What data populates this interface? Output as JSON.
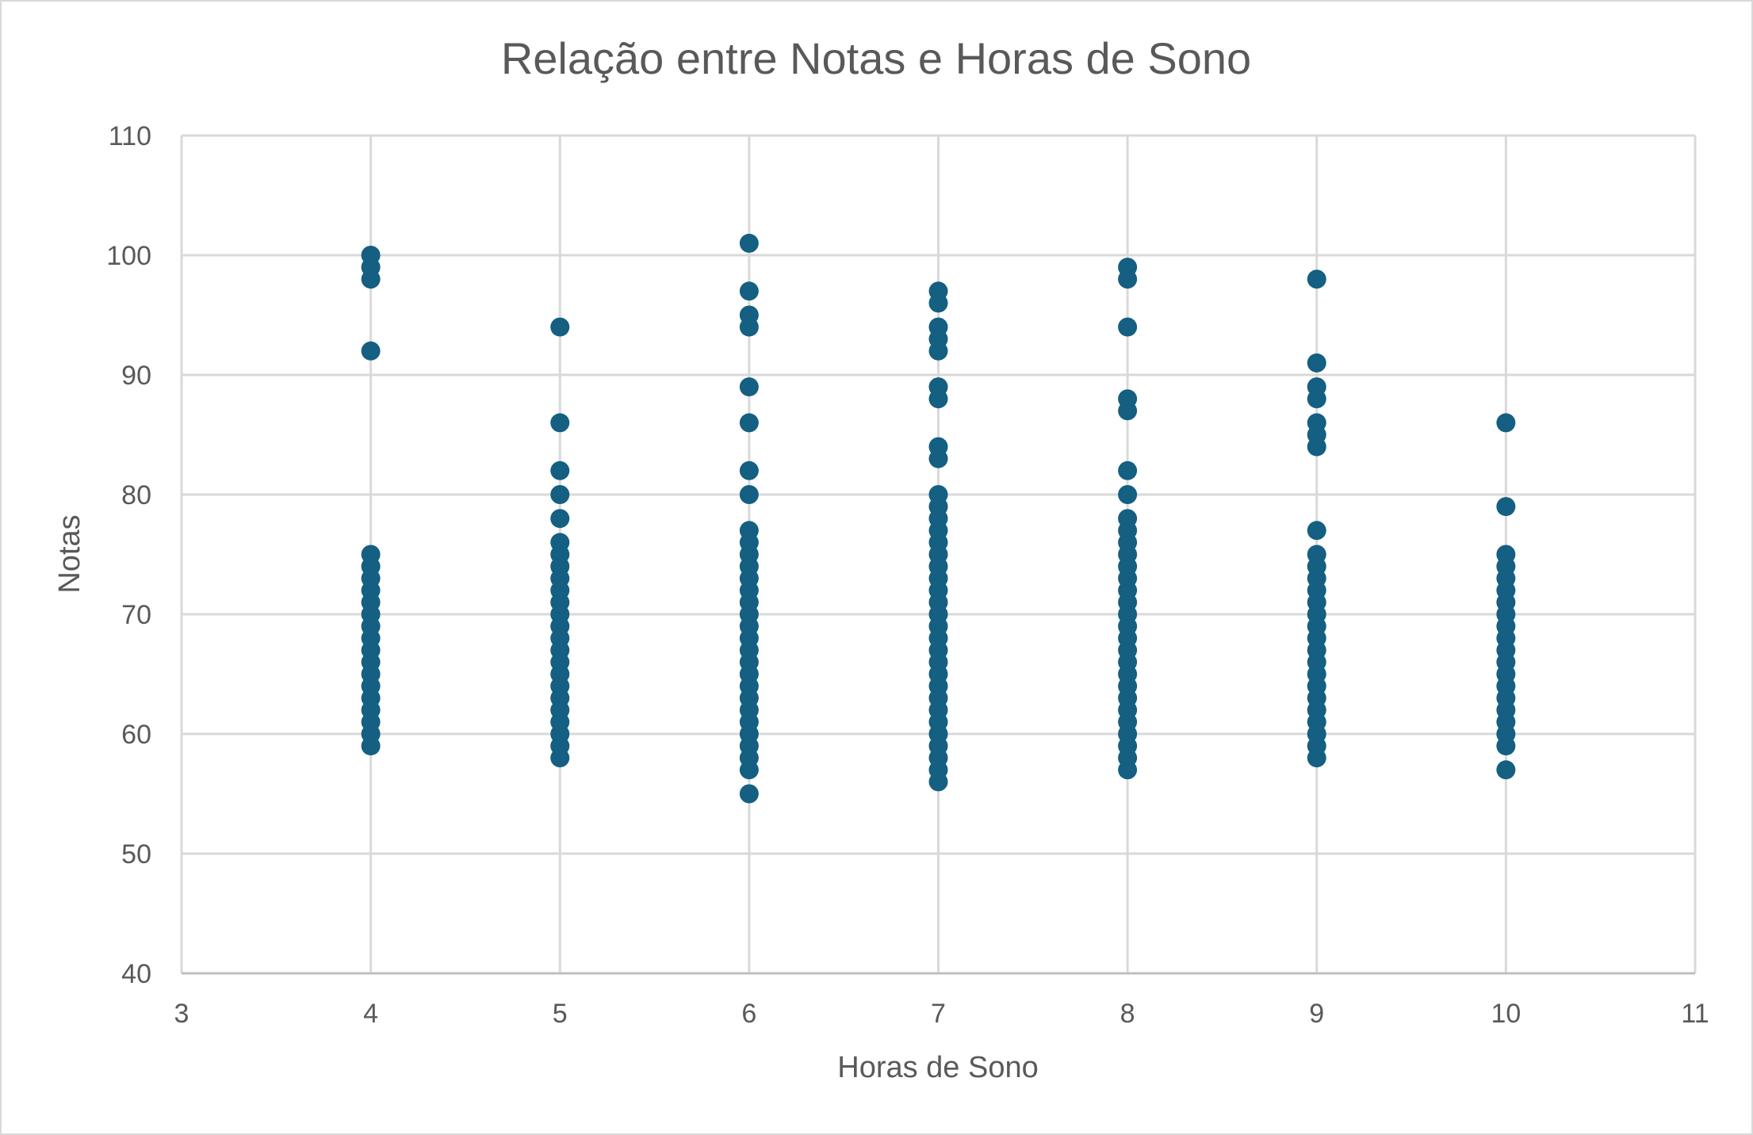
{
  "chart_data": {
    "type": "scatter",
    "title": "Relação entre Notas e Horas de Sono",
    "xlabel": "Horas de Sono",
    "ylabel": "Notas",
    "xlim": [
      3,
      11
    ],
    "ylim": [
      40,
      110
    ],
    "xticks": [
      3,
      4,
      5,
      6,
      7,
      8,
      9,
      10,
      11
    ],
    "yticks": [
      40,
      50,
      60,
      70,
      80,
      90,
      100,
      110
    ],
    "grid": true,
    "legend": "none",
    "marker_color": "#145f82",
    "series": [
      {
        "points": [
          [
            4,
            100
          ],
          [
            4,
            99
          ],
          [
            4,
            98
          ],
          [
            4,
            92
          ],
          [
            4,
            75
          ],
          [
            4,
            74
          ],
          [
            4,
            73
          ],
          [
            4,
            72
          ],
          [
            4,
            71
          ],
          [
            4,
            70
          ],
          [
            4,
            69
          ],
          [
            4,
            68
          ],
          [
            4,
            67
          ],
          [
            4,
            66
          ],
          [
            4,
            65
          ],
          [
            4,
            64
          ],
          [
            4,
            63
          ],
          [
            4,
            62
          ],
          [
            4,
            61
          ],
          [
            4,
            60
          ],
          [
            4,
            59
          ],
          [
            5,
            94
          ],
          [
            5,
            86
          ],
          [
            5,
            82
          ],
          [
            5,
            80
          ],
          [
            5,
            78
          ],
          [
            5,
            76
          ],
          [
            5,
            75
          ],
          [
            5,
            74
          ],
          [
            5,
            73
          ],
          [
            5,
            72
          ],
          [
            5,
            71
          ],
          [
            5,
            70
          ],
          [
            5,
            69
          ],
          [
            5,
            68
          ],
          [
            5,
            67
          ],
          [
            5,
            66
          ],
          [
            5,
            65
          ],
          [
            5,
            64
          ],
          [
            5,
            63
          ],
          [
            5,
            62
          ],
          [
            5,
            61
          ],
          [
            5,
            60
          ],
          [
            5,
            59
          ],
          [
            5,
            58
          ],
          [
            6,
            101
          ],
          [
            6,
            97
          ],
          [
            6,
            95
          ],
          [
            6,
            94
          ],
          [
            6,
            89
          ],
          [
            6,
            86
          ],
          [
            6,
            82
          ],
          [
            6,
            80
          ],
          [
            6,
            77
          ],
          [
            6,
            76
          ],
          [
            6,
            75
          ],
          [
            6,
            74
          ],
          [
            6,
            73
          ],
          [
            6,
            72
          ],
          [
            6,
            71
          ],
          [
            6,
            70
          ],
          [
            6,
            69
          ],
          [
            6,
            68
          ],
          [
            6,
            67
          ],
          [
            6,
            66
          ],
          [
            6,
            65
          ],
          [
            6,
            64
          ],
          [
            6,
            63
          ],
          [
            6,
            62
          ],
          [
            6,
            61
          ],
          [
            6,
            60
          ],
          [
            6,
            59
          ],
          [
            6,
            58
          ],
          [
            6,
            57
          ],
          [
            6,
            55
          ],
          [
            7,
            97
          ],
          [
            7,
            96
          ],
          [
            7,
            94
          ],
          [
            7,
            93
          ],
          [
            7,
            92
          ],
          [
            7,
            89
          ],
          [
            7,
            88
          ],
          [
            7,
            84
          ],
          [
            7,
            83
          ],
          [
            7,
            80
          ],
          [
            7,
            79
          ],
          [
            7,
            78
          ],
          [
            7,
            77
          ],
          [
            7,
            76
          ],
          [
            7,
            75
          ],
          [
            7,
            74
          ],
          [
            7,
            73
          ],
          [
            7,
            72
          ],
          [
            7,
            71
          ],
          [
            7,
            70
          ],
          [
            7,
            69
          ],
          [
            7,
            68
          ],
          [
            7,
            67
          ],
          [
            7,
            66
          ],
          [
            7,
            65
          ],
          [
            7,
            64
          ],
          [
            7,
            63
          ],
          [
            7,
            62
          ],
          [
            7,
            61
          ],
          [
            7,
            60
          ],
          [
            7,
            59
          ],
          [
            7,
            58
          ],
          [
            7,
            57
          ],
          [
            7,
            56
          ],
          [
            8,
            99
          ],
          [
            8,
            98
          ],
          [
            8,
            94
          ],
          [
            8,
            88
          ],
          [
            8,
            87
          ],
          [
            8,
            82
          ],
          [
            8,
            80
          ],
          [
            8,
            78
          ],
          [
            8,
            77
          ],
          [
            8,
            76
          ],
          [
            8,
            75
          ],
          [
            8,
            74
          ],
          [
            8,
            73
          ],
          [
            8,
            72
          ],
          [
            8,
            71
          ],
          [
            8,
            70
          ],
          [
            8,
            69
          ],
          [
            8,
            68
          ],
          [
            8,
            67
          ],
          [
            8,
            66
          ],
          [
            8,
            65
          ],
          [
            8,
            64
          ],
          [
            8,
            63
          ],
          [
            8,
            62
          ],
          [
            8,
            61
          ],
          [
            8,
            60
          ],
          [
            8,
            59
          ],
          [
            8,
            58
          ],
          [
            8,
            57
          ],
          [
            9,
            98
          ],
          [
            9,
            91
          ],
          [
            9,
            89
          ],
          [
            9,
            88
          ],
          [
            9,
            86
          ],
          [
            9,
            85
          ],
          [
            9,
            84
          ],
          [
            9,
            77
          ],
          [
            9,
            75
          ],
          [
            9,
            74
          ],
          [
            9,
            73
          ],
          [
            9,
            72
          ],
          [
            9,
            71
          ],
          [
            9,
            70
          ],
          [
            9,
            69
          ],
          [
            9,
            68
          ],
          [
            9,
            67
          ],
          [
            9,
            66
          ],
          [
            9,
            65
          ],
          [
            9,
            64
          ],
          [
            9,
            63
          ],
          [
            9,
            62
          ],
          [
            9,
            61
          ],
          [
            9,
            60
          ],
          [
            9,
            59
          ],
          [
            9,
            58
          ],
          [
            10,
            86
          ],
          [
            10,
            79
          ],
          [
            10,
            75
          ],
          [
            10,
            74
          ],
          [
            10,
            73
          ],
          [
            10,
            72
          ],
          [
            10,
            71
          ],
          [
            10,
            70
          ],
          [
            10,
            69
          ],
          [
            10,
            68
          ],
          [
            10,
            67
          ],
          [
            10,
            66
          ],
          [
            10,
            65
          ],
          [
            10,
            64
          ],
          [
            10,
            63
          ],
          [
            10,
            62
          ],
          [
            10,
            61
          ],
          [
            10,
            60
          ],
          [
            10,
            59
          ],
          [
            10,
            57
          ]
        ]
      }
    ]
  }
}
